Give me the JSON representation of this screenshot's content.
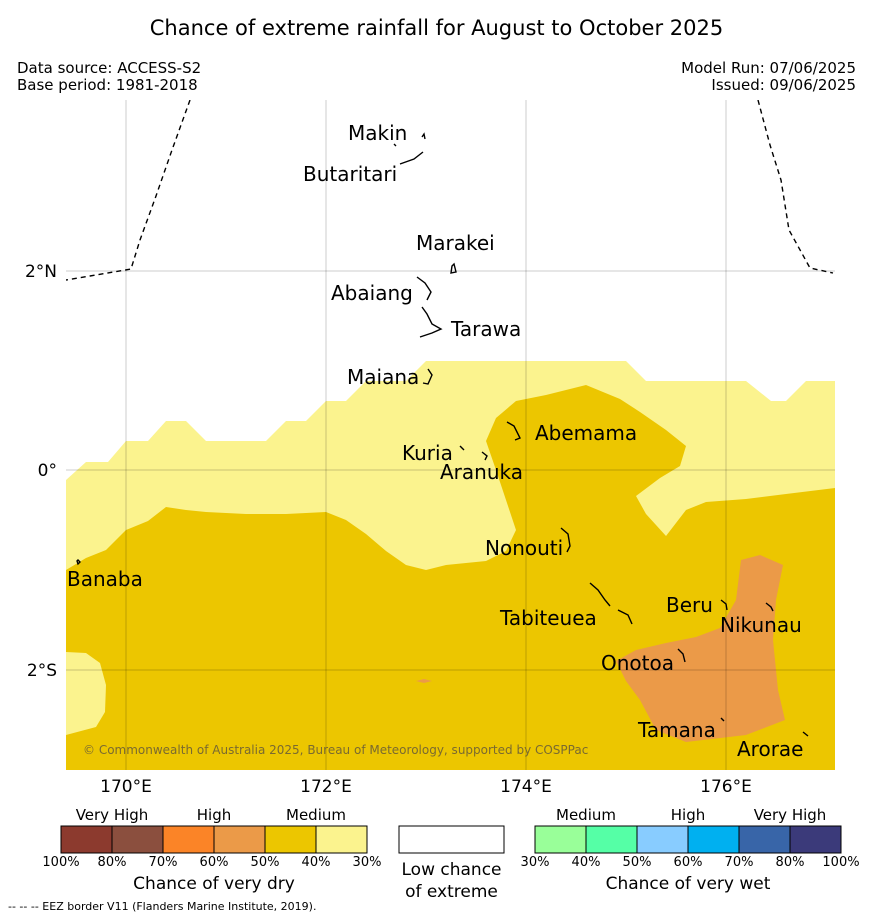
{
  "title": "Chance of extreme rainfall for August to October 2025",
  "meta": {
    "data_source": "Data source: ACCESS-S2",
    "base_period": "Base period: 1981-2018",
    "model_run": "Model Run: 07/06/2025",
    "issued": "Issued: 09/06/2025"
  },
  "map": {
    "lat_labels": [
      "2°N",
      "0°",
      "2°S"
    ],
    "lon_labels": [
      "170°E",
      "172°E",
      "174°E",
      "176°E"
    ],
    "copyright": "© Commonwealth of Australia 2025, Bureau of Meteorology, supported by COSPPac",
    "islands": [
      "Makin",
      "Butaritari",
      "Marakei",
      "Abaiang",
      "Tarawa",
      "Maiana",
      "Abemama",
      "Kuria",
      "Aranuka",
      "Nonouti",
      "Banaba",
      "Tabiteuea",
      "Beru",
      "Nikunau",
      "Onotoa",
      "Tamana",
      "Arorae"
    ],
    "colors": {
      "medium_dry_40_50": "#ecc600",
      "medium_dry_30_40": "#fbf38e",
      "high_dry_50_60": "#eb9a48"
    }
  },
  "legend": {
    "dry": {
      "groups": [
        "Very High",
        "High",
        "Medium"
      ],
      "ticks": [
        "100%",
        "80%",
        "70%",
        "60%",
        "50%",
        "40%",
        "30%"
      ],
      "colors": [
        "#8c3a2e",
        "#8b4f3e",
        "#fb8427",
        "#eb9a48",
        "#ecc600",
        "#fbf38e"
      ],
      "caption": "Chance of very dry"
    },
    "low": {
      "caption_line1": "Low chance",
      "caption_line2": "of extreme"
    },
    "wet": {
      "groups": [
        "Medium",
        "High",
        "Very High"
      ],
      "ticks": [
        "30%",
        "40%",
        "50%",
        "60%",
        "70%",
        "80%",
        "100%"
      ],
      "colors": [
        "#99ff99",
        "#55ffa6",
        "#88ccff",
        "#00b0f0",
        "#3865a8",
        "#3b3a7a"
      ],
      "caption": "Chance of very wet"
    }
  },
  "footer": "--  --  -- EEZ border V11 (Flanders Marine Institute, 2019)."
}
